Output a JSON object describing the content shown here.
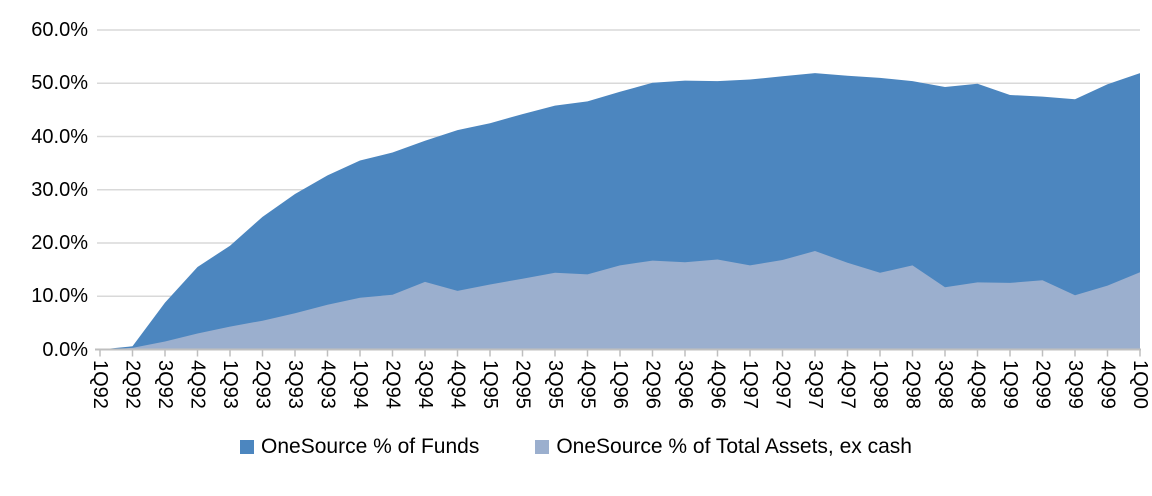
{
  "chart_data": {
    "type": "area",
    "title": "",
    "xlabel": "",
    "ylabel": "",
    "categories": [
      "1Q92",
      "2Q92",
      "3Q92",
      "4Q92",
      "1Q93",
      "2Q93",
      "3Q93",
      "4Q93",
      "1Q94",
      "2Q94",
      "3Q94",
      "4Q94",
      "1Q95",
      "2Q95",
      "3Q95",
      "4Q95",
      "1Q96",
      "2Q96",
      "3Q96",
      "4Q96",
      "1Q97",
      "2Q97",
      "3Q97",
      "4Q97",
      "1Q98",
      "2Q98",
      "3Q98",
      "4Q98",
      "1Q99",
      "2Q99",
      "3Q99",
      "4Q99",
      "1Q00"
    ],
    "series": [
      {
        "name": "OneSource % of Funds",
        "color": "#4c86bf",
        "values": [
          0.0,
          0.6,
          8.8,
          15.5,
          19.5,
          24.9,
          29.2,
          32.7,
          35.5,
          37.0,
          39.2,
          41.2,
          42.5,
          44.2,
          45.8,
          46.6,
          48.4,
          50.1,
          50.5,
          50.4,
          50.7,
          51.3,
          51.9,
          51.4,
          51.0,
          50.4,
          49.3,
          49.9,
          47.8,
          47.5,
          47.0,
          49.8,
          51.9
        ]
      },
      {
        "name": "OneSource % of Total Assets, ex cash",
        "color": "#9bafce",
        "values": [
          0.0,
          0.3,
          1.5,
          3.0,
          4.3,
          5.4,
          6.8,
          8.4,
          9.7,
          10.3,
          12.7,
          11.0,
          12.2,
          13.3,
          14.4,
          14.1,
          15.8,
          16.7,
          16.4,
          16.9,
          15.8,
          16.8,
          18.5,
          16.3,
          14.4,
          15.8,
          11.7,
          12.6,
          12.5,
          13.0,
          10.2,
          12.0,
          14.5
        ]
      }
    ],
    "y_tick_labels": [
      "0.0%",
      "10.0%",
      "20.0%",
      "30.0%",
      "40.0%",
      "50.0%",
      "60.0%"
    ],
    "ylim": [
      0,
      60
    ],
    "y_tick_step": 10,
    "grid": true,
    "grid_color": "#d9d9d9",
    "axis_color": "#bfbfbf",
    "legend_position": "bottom"
  }
}
